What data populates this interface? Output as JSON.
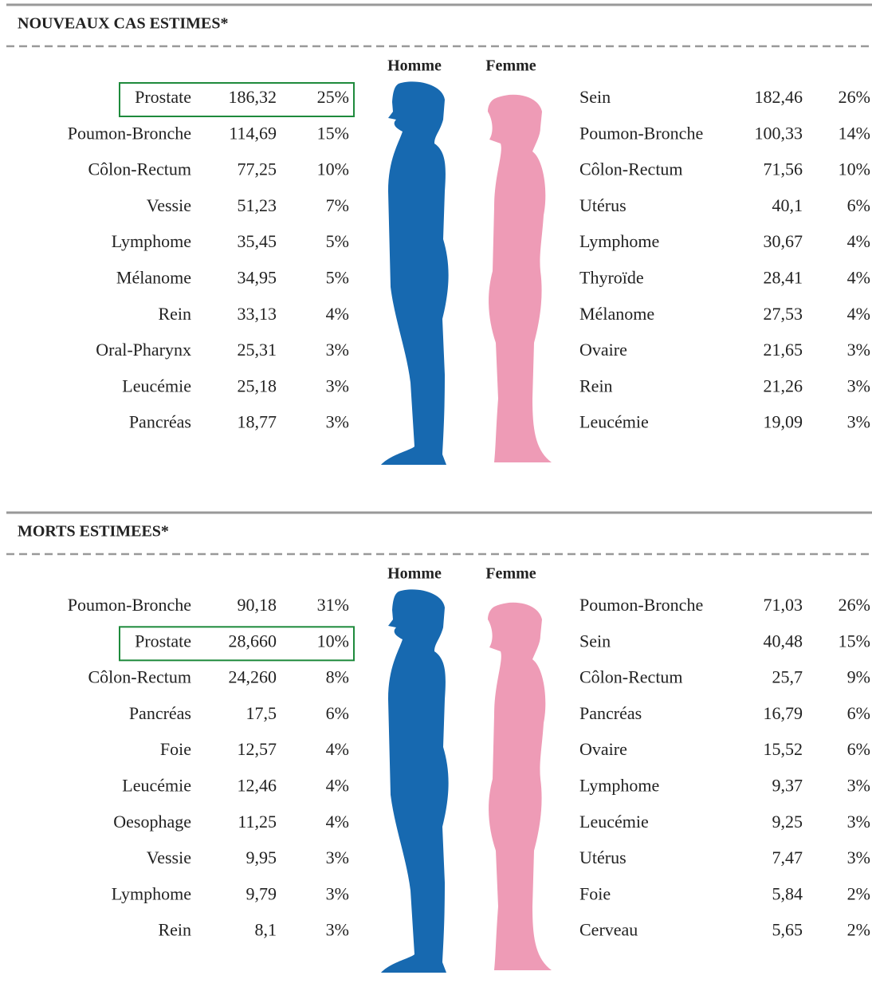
{
  "sections": [
    {
      "title": "NOUVEAUX CAS ESTIMES*",
      "men": {
        "label": "Homme",
        "boxed_row": 0,
        "rows": [
          [
            "Prostate",
            "186,32",
            "25%"
          ],
          [
            "Poumon-Bronche",
            "114,69",
            "15%"
          ],
          [
            "Côlon-Rectum",
            "77,25",
            "10%"
          ],
          [
            "Vessie",
            "51,23",
            "7%"
          ],
          [
            "Lymphome",
            "35,45",
            "5%"
          ],
          [
            "Mélanome",
            "34,95",
            "5%"
          ],
          [
            "Rein",
            "33,13",
            "4%"
          ],
          [
            "Oral-Pharynx",
            "25,31",
            "3%"
          ],
          [
            "Leucémie",
            "25,18",
            "3%"
          ],
          [
            "Pancréas",
            "18,77",
            "3%"
          ]
        ]
      },
      "women": {
        "label": "Femme",
        "rows": [
          [
            "Sein",
            "182,46",
            "26%"
          ],
          [
            "Poumon-Bronche",
            "100,33",
            "14%"
          ],
          [
            "Côlon-Rectum",
            "71,56",
            "10%"
          ],
          [
            "Utérus",
            "40,1",
            "6%"
          ],
          [
            "Lymphome",
            "30,67",
            "4%"
          ],
          [
            "Thyroïde",
            "28,41",
            "4%"
          ],
          [
            "Mélanome",
            "27,53",
            "4%"
          ],
          [
            "Ovaire",
            "21,65",
            "3%"
          ],
          [
            "Rein",
            "21,26",
            "3%"
          ],
          [
            "Leucémie",
            "19,09",
            "3%"
          ]
        ]
      }
    },
    {
      "title": "MORTS ESTIMEES*",
      "men": {
        "label": "Homme",
        "boxed_row": 1,
        "rows": [
          [
            "Poumon-Bronche",
            "90,18",
            "31%"
          ],
          [
            "Prostate",
            "28,660",
            "10%"
          ],
          [
            "Côlon-Rectum",
            "24,260",
            "8%"
          ],
          [
            "Pancréas",
            "17,5",
            "6%"
          ],
          [
            "Foie",
            "12,57",
            "4%"
          ],
          [
            "Leucémie",
            "12,46",
            "4%"
          ],
          [
            "Oesophage",
            "11,25",
            "4%"
          ],
          [
            "Vessie",
            "9,95",
            "3%"
          ],
          [
            "Lymphome",
            "9,79",
            "3%"
          ],
          [
            "Rein",
            "8,1",
            "3%"
          ]
        ]
      },
      "women": {
        "label": "Femme",
        "rows": [
          [
            "Poumon-Bronche",
            "71,03",
            "26%"
          ],
          [
            "Sein",
            "40,48",
            "15%"
          ],
          [
            "Côlon-Rectum",
            "25,7",
            "9%"
          ],
          [
            "Pancréas",
            "16,79",
            "6%"
          ],
          [
            "Ovaire",
            "15,52",
            "6%"
          ],
          [
            "Lymphome",
            "9,37",
            "3%"
          ],
          [
            "Leucémie",
            "9,25",
            "3%"
          ],
          [
            "Utérus",
            "7,47",
            "3%"
          ],
          [
            "Foie",
            "5,84",
            "2%"
          ],
          [
            "Cerveau",
            "5,65",
            "2%"
          ]
        ]
      }
    }
  ]
}
